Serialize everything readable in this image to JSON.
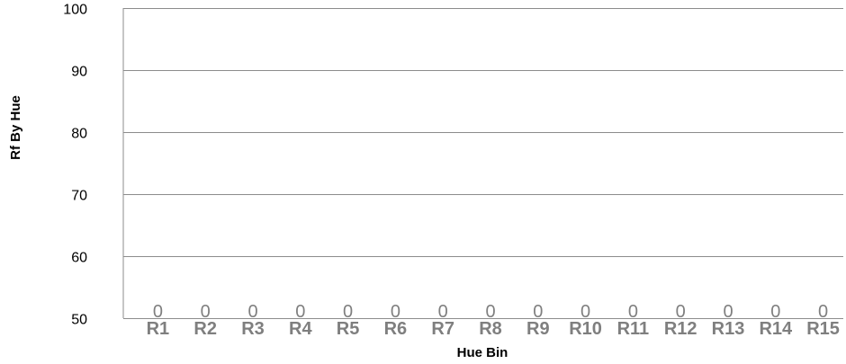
{
  "chart_data": {
    "type": "bar",
    "title": "",
    "xlabel": "Hue Bin",
    "ylabel": "Rf By Hue",
    "categories": [
      "R1",
      "R2",
      "R3",
      "R4",
      "R5",
      "R6",
      "R7",
      "R8",
      "R9",
      "R10",
      "R11",
      "R12",
      "R13",
      "R14",
      "R15"
    ],
    "values": [
      0,
      0,
      0,
      0,
      0,
      0,
      0,
      0,
      0,
      0,
      0,
      0,
      0,
      0,
      0
    ],
    "data_labels": [
      "0",
      "0",
      "0",
      "0",
      "0",
      "0",
      "0",
      "0",
      "0",
      "0",
      "0",
      "0",
      "0",
      "0",
      "0"
    ],
    "ylim": [
      50,
      100
    ],
    "yticks": [
      50,
      60,
      70,
      80,
      90,
      100
    ],
    "grid": true,
    "legend": "none",
    "colors": {
      "gridline": "#8c8c8c",
      "category_label": "#7f7f7f",
      "data_label": "#7f7f7f",
      "axis_text": "#000000"
    }
  }
}
